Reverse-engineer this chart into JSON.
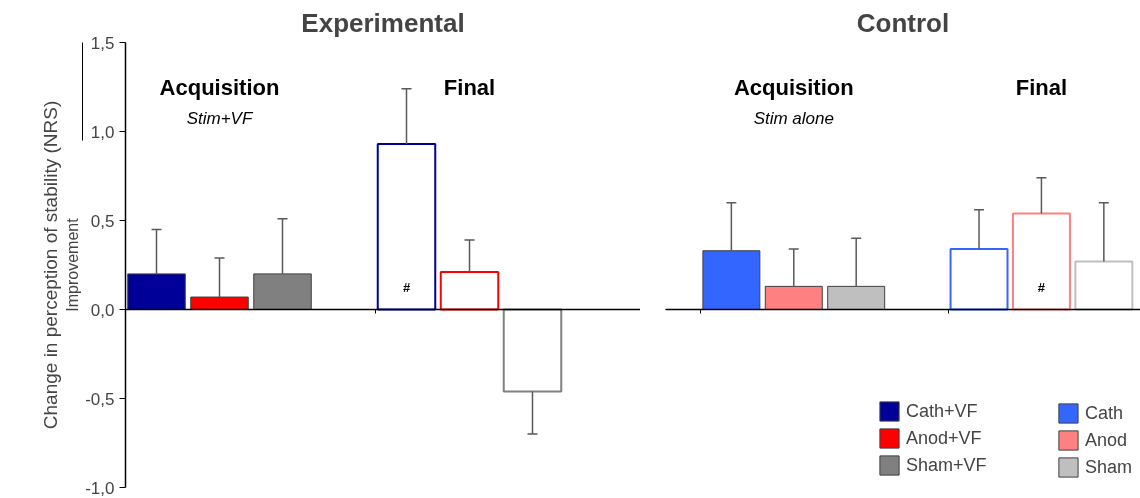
{
  "chart_data": [
    {
      "type": "bar",
      "title": "Experimental",
      "ylabel": "Change in perception of stability (NRS)",
      "categories": [
        "Acquisition",
        "Final"
      ],
      "annotations": [
        "Improvement",
        "Stim+VF"
      ],
      "ylim": [
        -1.0,
        1.5
      ],
      "yticks": [
        {
          "value": -1.0,
          "label": "-1,0"
        },
        {
          "value": -0.5,
          "label": "-0,5"
        },
        {
          "value": 0.0,
          "label": "0,0"
        },
        {
          "value": 0.5,
          "label": "0,5"
        },
        {
          "value": 1.0,
          "label": "1,0"
        },
        {
          "value": 1.5,
          "label": "1,5"
        }
      ],
      "tick_labels": "y",
      "legend": "bottom right",
      "series": [
        {
          "name": "Cath+VF",
          "color": "#000099",
          "values": [
            0.2,
            0.93
          ],
          "errors": [
            [
              0.2,
              0.45
            ],
            [
              0.93,
              1.24
            ]
          ],
          "value_labels": [
            null,
            "#"
          ]
        },
        {
          "name": "Anod+VF",
          "color": "#ff0000",
          "values": [
            0.07,
            0.21
          ],
          "errors": [
            [
              0.07,
              0.29
            ],
            [
              0.21,
              0.39
            ]
          ]
        },
        {
          "name": "Sham+VF",
          "color": "#808080",
          "values": [
            0.2,
            -0.46
          ],
          "errors": [
            [
              0.2,
              0.51
            ],
            [
              -0.7,
              -0.46
            ]
          ]
        }
      ]
    },
    {
      "type": "bar",
      "title": "Control",
      "categories": [
        "Acquisition",
        "Final"
      ],
      "annotations": [
        "Stim alone"
      ],
      "ylim": [
        -1.0,
        1.5
      ],
      "tick_labels": false,
      "legend": "bottom right",
      "series": [
        {
          "name": "Cath",
          "color": "#3366ff",
          "values": [
            0.33,
            0.34
          ],
          "errors": [
            [
              0.33,
              0.6
            ],
            [
              0.34,
              0.56
            ]
          ]
        },
        {
          "name": "Anod",
          "color": "#ff8080",
          "values": [
            0.13,
            0.54
          ],
          "errors": [
            [
              0.13,
              0.34
            ],
            [
              0.54,
              0.74
            ]
          ],
          "value_labels": [
            null,
            "#"
          ]
        },
        {
          "name": "Sham",
          "color": "#bfbfbf",
          "values": [
            0.13,
            0.27
          ],
          "errors": [
            [
              0.13,
              0.4
            ],
            [
              0.27,
              0.6
            ]
          ]
        }
      ]
    }
  ]
}
